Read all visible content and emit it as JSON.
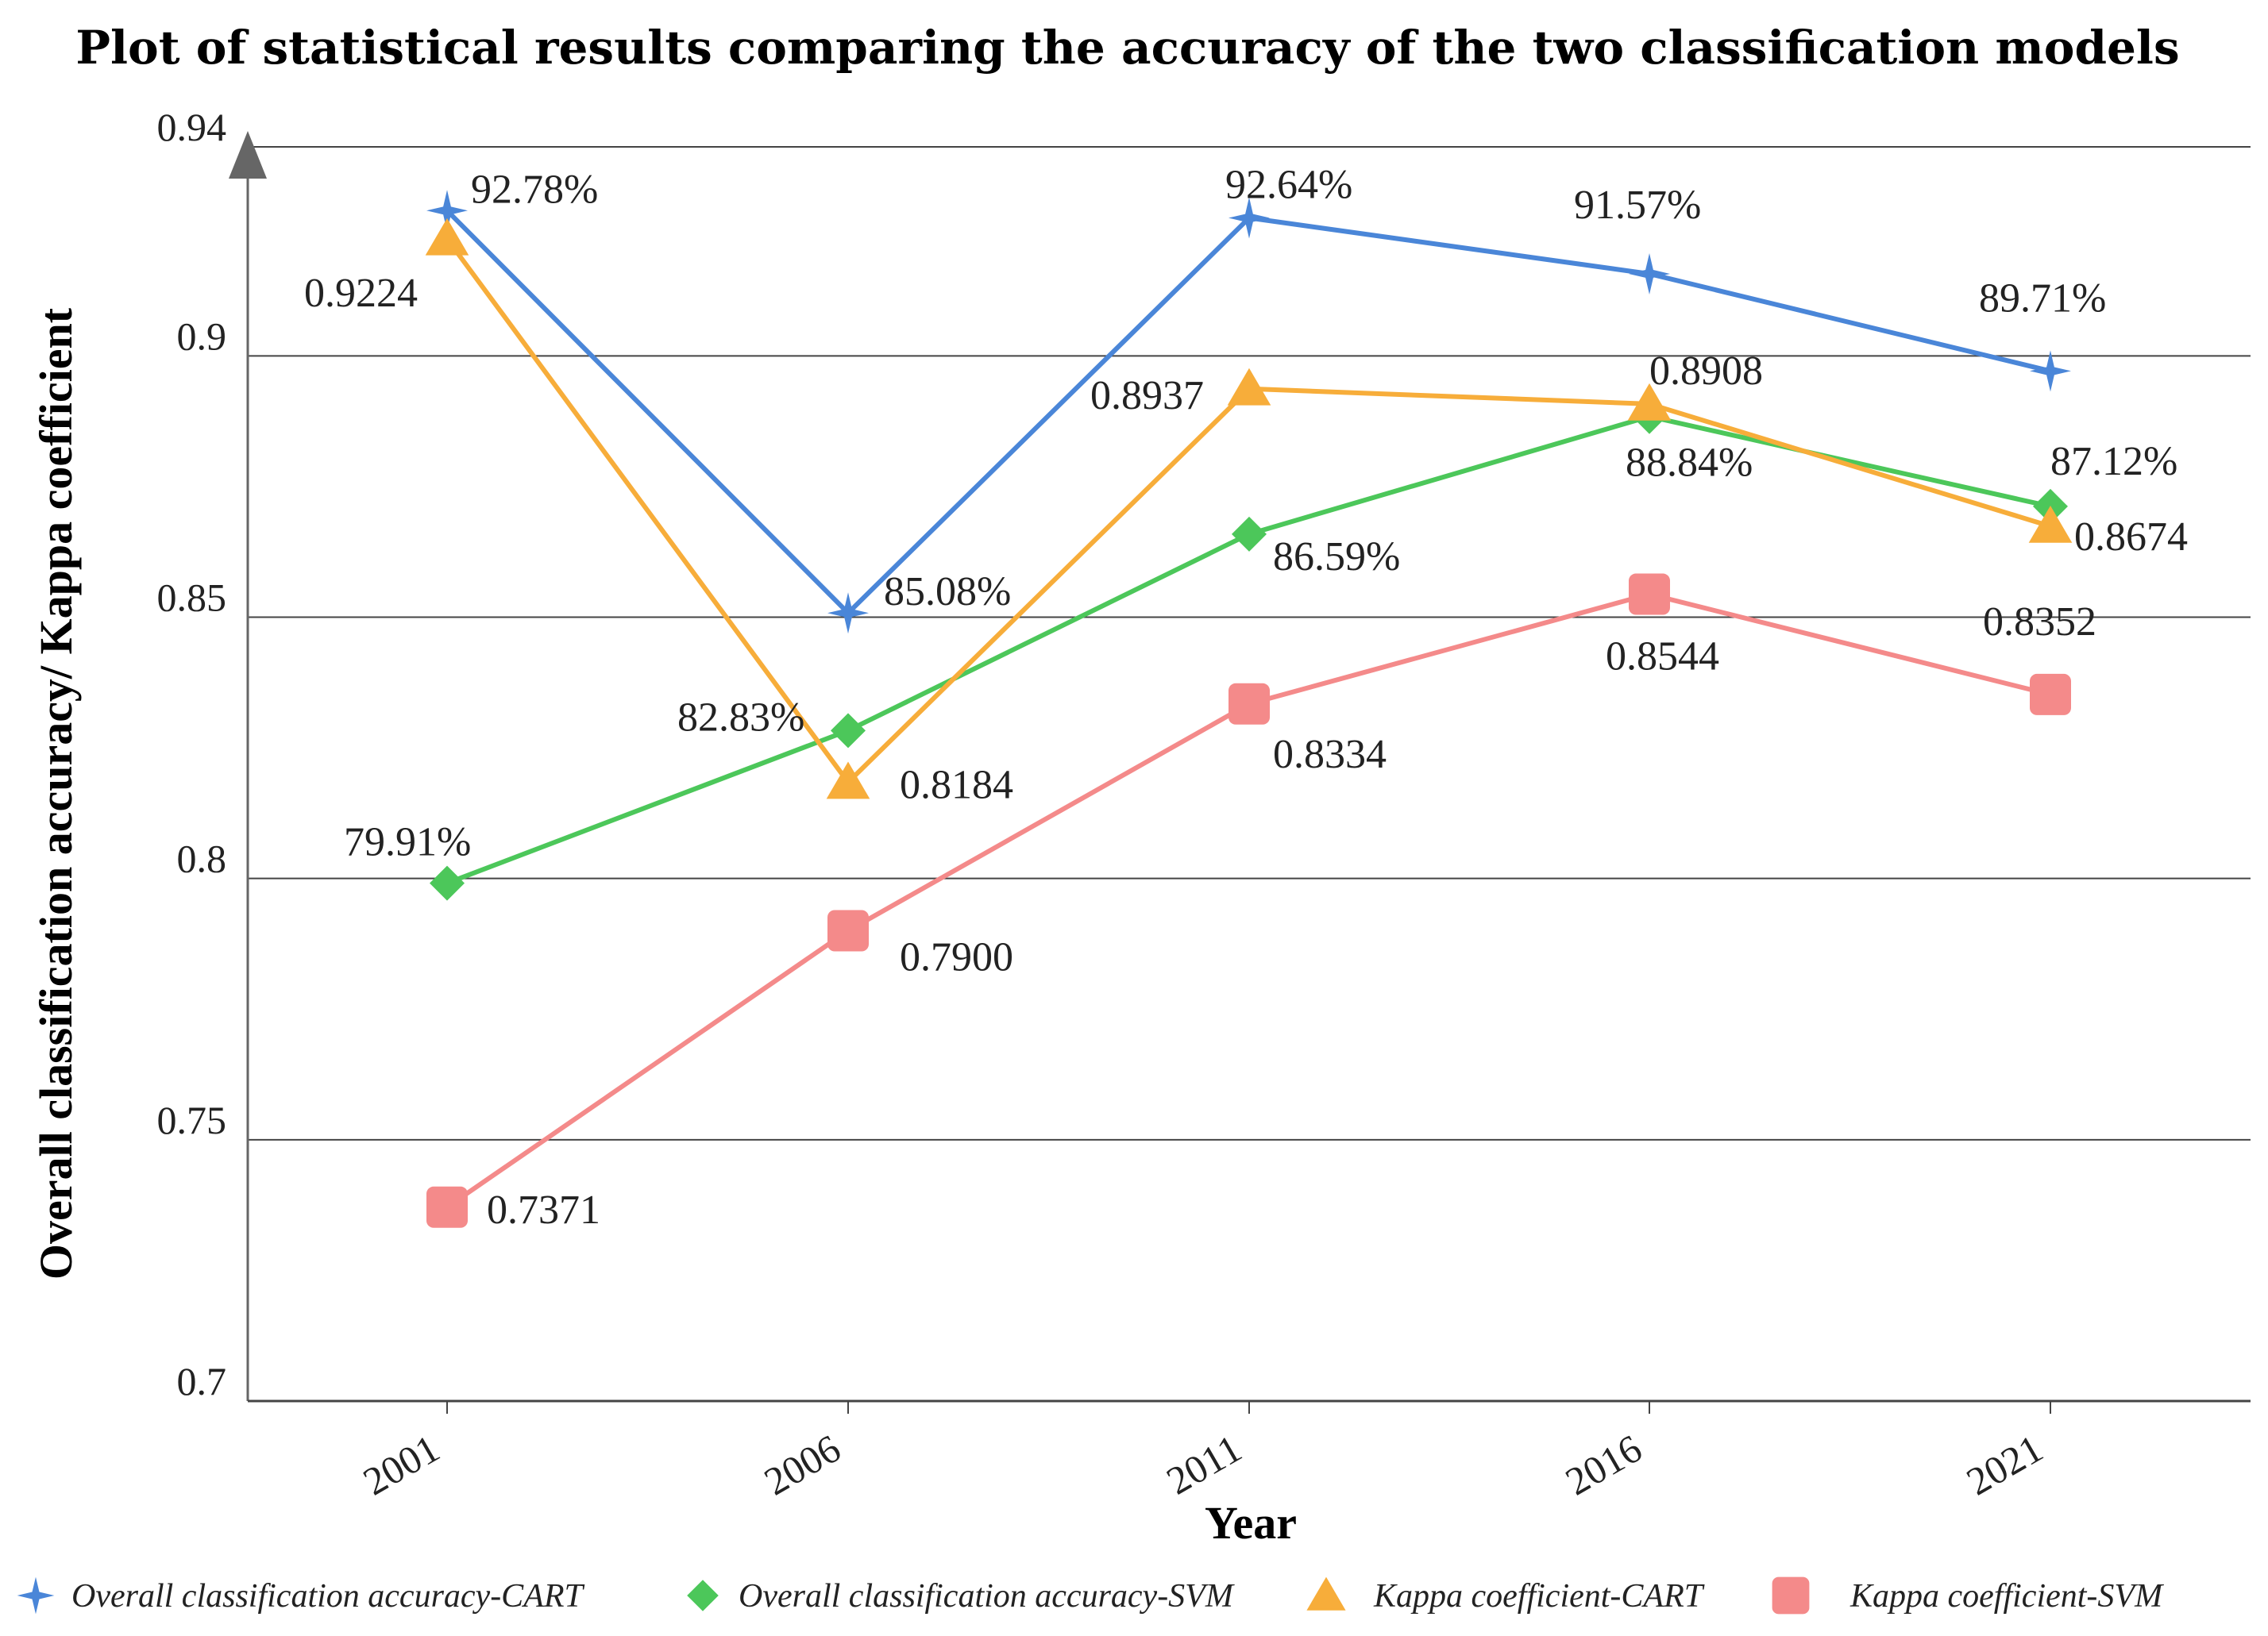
{
  "chart_data": {
    "type": "line",
    "title": "Plot of statistical results comparing the accuracy of the two classification models",
    "xlabel": "Year",
    "ylabel": "Overall classification accuracy/ Kappa coefficient",
    "categories": [
      "2001",
      "2006",
      "2011",
      "2016",
      "2021"
    ],
    "ylim": [
      0.7,
      0.94
    ],
    "yticks": [
      0.7,
      0.75,
      0.8,
      0.85,
      0.9,
      0.94
    ],
    "ytick_labels": [
      "0.7",
      "0.75",
      "0.8",
      "0.85",
      "0.9",
      "0.94"
    ],
    "grid": true,
    "legend_position": "bottom",
    "series": [
      {
        "name": "Overall classification accuracy-CART",
        "color": "#4a86d8",
        "marker": "star",
        "values": [
          0.9278,
          0.8508,
          0.9264,
          0.9157,
          0.8971
        ],
        "labels": [
          "92.78%",
          "85.08%",
          "92.64%",
          "91.57%",
          "89.71%"
        ]
      },
      {
        "name": "Overall classification accuracy-SVM",
        "color": "#4cc75a",
        "marker": "diamond",
        "values": [
          0.7991,
          0.8283,
          0.8659,
          0.8884,
          0.8712
        ],
        "labels": [
          "79.91%",
          "82.83%",
          "86.59%",
          "88.84%",
          "87.12%"
        ]
      },
      {
        "name": "Kappa coefficient-CART",
        "color": "#f7ad3a",
        "marker": "triangle",
        "values": [
          0.9224,
          0.8184,
          0.8937,
          0.8908,
          0.8674
        ],
        "labels": [
          "0.9224",
          "0.8184",
          "0.8937",
          "0.8908",
          "0.8674"
        ]
      },
      {
        "name": "Kappa coefficient-SVM",
        "color": "#f48a8a",
        "marker": "square",
        "values": [
          0.7371,
          0.79,
          0.8334,
          0.8544,
          0.8352
        ],
        "labels": [
          "0.7371",
          "0.7900",
          "0.8334",
          "0.8544",
          "0.8352"
        ]
      }
    ]
  }
}
